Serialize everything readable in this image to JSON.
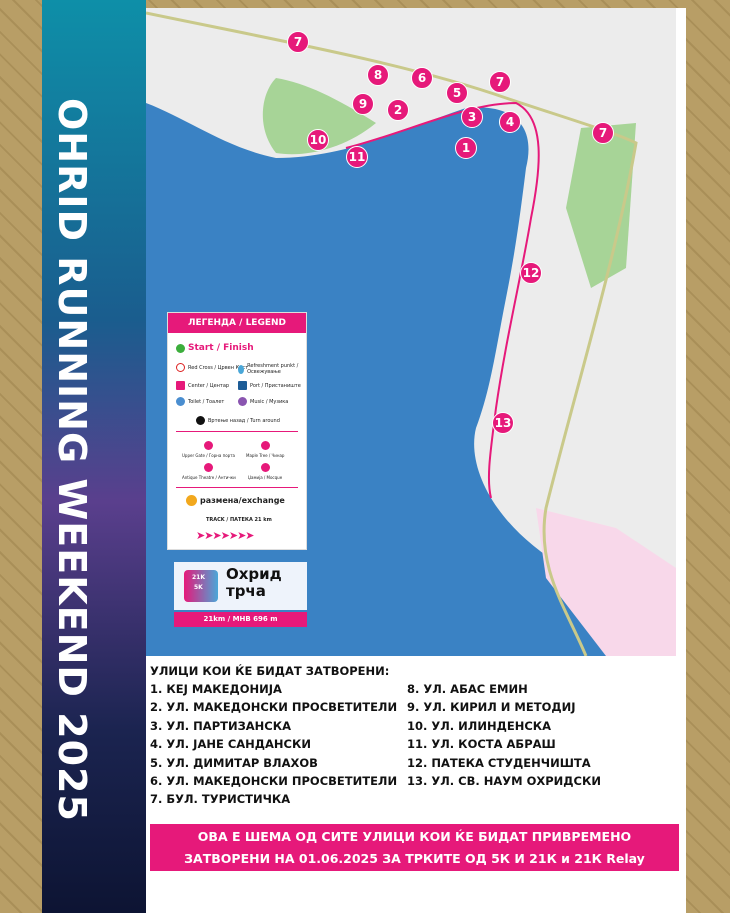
{
  "banner": {
    "title": "OHRID RUNNING WEEKEND 2025"
  },
  "map": {
    "colors": {
      "lake": "#3a82c4",
      "land": "#ececec",
      "park": "#9fd08f",
      "route": "#e6197a"
    },
    "markers": [
      "7",
      "8",
      "6",
      "7",
      "5",
      "9",
      "2",
      "3",
      "4",
      "10",
      "11",
      "1",
      "7",
      "12",
      "13"
    ]
  },
  "legend": {
    "title": "ЛЕГЕНДА / LEGEND",
    "start": "Start / Finish",
    "items": [
      "Red Cross / Црвен Крст",
      "Refreshment punkt / Освежување",
      "Center / Центар",
      "Port / Пристаниште",
      "Toilet / Тоалет",
      "Music / Музика"
    ],
    "turn": "Вртење назад / Turn around",
    "sights": [
      "Upper Gate / Горна порта",
      "Maple Tree / Чинар",
      "Antique Theatre / Антички",
      "Џамија / Мосque"
    ],
    "exchange": "размена/exchange",
    "track": "TRACK / ПАТЕКА 21 km"
  },
  "logo": {
    "text": "Охрид трча",
    "badges": [
      "21K",
      "5K"
    ],
    "bar": "21km  /  МНВ 696 m"
  },
  "streets": {
    "heading": "УЛИЦИ КОИ ЌЕ БИДАТ ЗАТВОРЕНИ:",
    "left": [
      "1. КЕЈ МАКЕДОНИЈА",
      "2. УЛ. МАКЕДОНСКИ ПРОСВЕТИТЕЛИ",
      "3. УЛ. ПАРТИЗАНСКА",
      "4. УЛ. ЈАНЕ САНДАНСКИ",
      "5. УЛ. ДИМИТАР ВЛАХОВ",
      "6. УЛ. МАКЕДОНСКИ ПРОСВЕТИТЕЛИ",
      "7. БУЛ. ТУРИСТИЧКА"
    ],
    "right": [
      "8. УЛ. АБАС ЕМИН",
      "9. УЛ. КИРИЛ И МЕТОДИЈ",
      "10. УЛ. ИЛИНДЕНСКА",
      "11. УЛ. КОСТА АБРАШ",
      "12. ПАТЕКА СТУДЕНЧИШТА",
      "13. УЛ. СВ. НАУМ ОХРИДСКИ"
    ]
  },
  "notice": {
    "line1": "ОВА Е ШЕМА ОД СИТЕ УЛИЦИ КОИ ЌЕ БИДАТ ПРИВРЕМЕНО",
    "line2": "ЗАТВОРЕНИ НА 01.06.2025 ЗА ТРКИТЕ ОД 5К И 21К и 21К Relay"
  }
}
